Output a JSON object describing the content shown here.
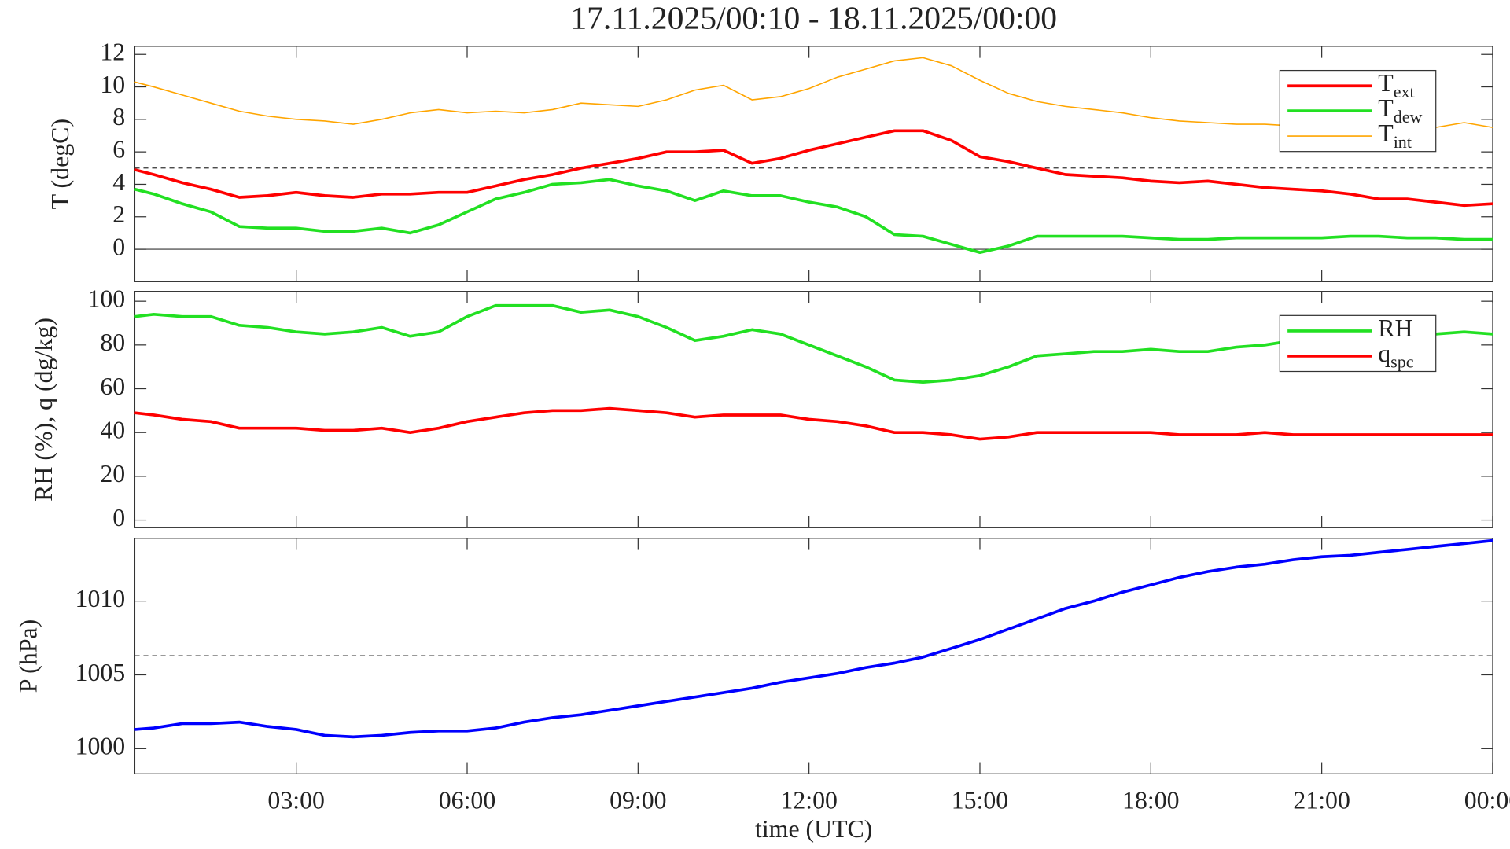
{
  "chart_data": [
    {
      "type": "line",
      "title": "17.11.2025/00:10 - 18.11.2025/00:00",
      "ylabel": "T (degC)",
      "x": [
        0.1667,
        0.5,
        1,
        1.5,
        2,
        2.5,
        3,
        3.5,
        4,
        4.5,
        5,
        5.5,
        6,
        6.5,
        7,
        7.5,
        8,
        8.5,
        9,
        9.5,
        10,
        10.5,
        11,
        11.5,
        12,
        12.5,
        13,
        13.5,
        14,
        14.5,
        15,
        15.5,
        16,
        16.5,
        17,
        17.5,
        18,
        18.5,
        19,
        19.5,
        20,
        20.5,
        21,
        21.5,
        22,
        22.5,
        23,
        23.5,
        24
      ],
      "xlim": [
        0.1667,
        24
      ],
      "ylim": [
        -2,
        12.5
      ],
      "yticks": [
        0,
        2,
        4,
        6,
        8,
        10,
        12
      ],
      "hlines": [
        {
          "value": 5,
          "style": "dashed"
        },
        {
          "value": 0,
          "style": "solid"
        }
      ],
      "legend": "upper right",
      "series": [
        {
          "name": "T",
          "subscript": "ext",
          "color": "#ff0000",
          "values": [
            4.9,
            4.6,
            4.1,
            3.7,
            3.2,
            3.3,
            3.5,
            3.3,
            3.2,
            3.4,
            3.4,
            3.5,
            3.5,
            3.9,
            4.3,
            4.6,
            5.0,
            5.3,
            5.6,
            6.0,
            6.0,
            6.1,
            5.3,
            5.6,
            6.1,
            6.5,
            6.9,
            7.3,
            7.3,
            6.7,
            5.7,
            5.4,
            5.0,
            4.6,
            4.5,
            4.4,
            4.2,
            4.1,
            4.2,
            4.0,
            3.8,
            3.7,
            3.6,
            3.4,
            3.1,
            3.1,
            2.9,
            2.7,
            2.8
          ]
        },
        {
          "name": "T",
          "subscript": "dew",
          "color": "#22e022",
          "values": [
            3.7,
            3.4,
            2.8,
            2.3,
            1.4,
            1.3,
            1.3,
            1.1,
            1.1,
            1.3,
            1.0,
            1.5,
            2.3,
            3.1,
            3.5,
            4.0,
            4.1,
            4.3,
            3.9,
            3.6,
            3.0,
            3.6,
            3.3,
            3.3,
            2.9,
            2.6,
            2.0,
            0.9,
            0.8,
            0.3,
            -0.2,
            0.2,
            0.8,
            0.8,
            0.8,
            0.8,
            0.7,
            0.6,
            0.6,
            0.7,
            0.7,
            0.7,
            0.7,
            0.8,
            0.8,
            0.7,
            0.7,
            0.6,
            0.6
          ]
        },
        {
          "name": "T",
          "subscript": "int",
          "color": "#ffa500",
          "values": [
            10.3,
            10.0,
            9.5,
            9.0,
            8.5,
            8.2,
            8.0,
            7.9,
            7.7,
            8.0,
            8.4,
            8.6,
            8.4,
            8.5,
            8.4,
            8.6,
            9.0,
            8.9,
            8.8,
            9.2,
            9.8,
            10.1,
            9.2,
            9.4,
            9.9,
            10.6,
            11.1,
            11.6,
            11.8,
            11.3,
            10.4,
            9.6,
            9.1,
            8.8,
            8.6,
            8.4,
            8.1,
            7.9,
            7.8,
            7.7,
            7.7,
            7.6,
            7.6,
            7.5,
            7.6,
            7.5,
            7.5,
            7.8,
            7.5
          ]
        }
      ]
    },
    {
      "type": "line",
      "ylabel": "RH (%), q (dg/kg)",
      "x": [
        0.1667,
        0.5,
        1,
        1.5,
        2,
        2.5,
        3,
        3.5,
        4,
        4.5,
        5,
        5.5,
        6,
        6.5,
        7,
        7.5,
        8,
        8.5,
        9,
        9.5,
        10,
        10.5,
        11,
        11.5,
        12,
        12.5,
        13,
        13.5,
        14,
        14.5,
        15,
        15.5,
        16,
        16.5,
        17,
        17.5,
        18,
        18.5,
        19,
        19.5,
        20,
        20.5,
        21,
        21.5,
        22,
        22.5,
        23,
        23.5,
        24
      ],
      "xlim": [
        0.1667,
        24
      ],
      "ylim": [
        -3.5,
        104.5
      ],
      "yticks": [
        0,
        20,
        40,
        60,
        80,
        100
      ],
      "legend": "upper right",
      "series": [
        {
          "name": "RH",
          "color": "#22e022",
          "values": [
            93,
            94,
            93,
            93,
            89,
            88,
            86,
            85,
            86,
            88,
            84,
            86,
            93,
            98,
            98,
            98,
            95,
            96,
            93,
            88,
            82,
            84,
            87,
            85,
            80,
            75,
            70,
            64,
            63,
            64,
            66,
            70,
            75,
            76,
            77,
            77,
            78,
            77,
            77,
            79,
            80,
            82,
            82,
            83,
            84,
            84,
            85,
            86,
            85
          ]
        },
        {
          "name": "q",
          "subscript": "spc",
          "color": "#ff0000",
          "values": [
            49,
            48,
            46,
            45,
            42,
            42,
            42,
            41,
            41,
            42,
            40,
            42,
            45,
            47,
            49,
            50,
            50,
            51,
            50,
            49,
            47,
            48,
            48,
            48,
            46,
            45,
            43,
            40,
            40,
            39,
            37,
            38,
            40,
            40,
            40,
            40,
            40,
            39,
            39,
            39,
            40,
            39,
            39,
            39,
            39,
            39,
            39,
            39,
            39
          ]
        }
      ]
    },
    {
      "type": "line",
      "ylabel": "P (hPa)",
      "xlabel": "time (UTC)",
      "x": [
        0.1667,
        0.5,
        1,
        1.5,
        2,
        2.5,
        3,
        3.5,
        4,
        4.5,
        5,
        5.5,
        6,
        6.5,
        7,
        7.5,
        8,
        8.5,
        9,
        9.5,
        10,
        10.5,
        11,
        11.5,
        12,
        12.5,
        13,
        13.5,
        14,
        14.5,
        15,
        15.5,
        16,
        16.5,
        17,
        17.5,
        18,
        18.5,
        19,
        19.5,
        20,
        20.5,
        21,
        21.5,
        22,
        22.5,
        23,
        23.5,
        24
      ],
      "xlim": [
        0.1667,
        24
      ],
      "xticks": [
        {
          "value": 3,
          "label": "03:00"
        },
        {
          "value": 6,
          "label": "06:00"
        },
        {
          "value": 9,
          "label": "09:00"
        },
        {
          "value": 12,
          "label": "12:00"
        },
        {
          "value": 15,
          "label": "15:00"
        },
        {
          "value": 18,
          "label": "18:00"
        },
        {
          "value": 21,
          "label": "21:00"
        },
        {
          "value": 24,
          "label": "00:00"
        }
      ],
      "ylim": [
        998.3,
        1014.25
      ],
      "yticks": [
        1000,
        1005,
        1010
      ],
      "hlines": [
        {
          "value": 1006.3,
          "style": "dashed"
        }
      ],
      "series": [
        {
          "color": "#0000ff",
          "values": [
            1001.3,
            1001.4,
            1001.7,
            1001.7,
            1001.8,
            1001.5,
            1001.3,
            1000.9,
            1000.8,
            1000.9,
            1001.1,
            1001.2,
            1001.2,
            1001.4,
            1001.8,
            1002.1,
            1002.3,
            1002.6,
            1002.9,
            1003.2,
            1003.5,
            1003.8,
            1004.1,
            1004.5,
            1004.8,
            1005.1,
            1005.5,
            1005.8,
            1006.2,
            1006.8,
            1007.4,
            1008.1,
            1008.8,
            1009.5,
            1010.0,
            1010.6,
            1011.1,
            1011.6,
            1012.0,
            1012.3,
            1012.5,
            1012.8,
            1013.0,
            1013.1,
            1013.3,
            1013.5,
            1013.7,
            1013.9,
            1014.1
          ]
        }
      ]
    }
  ]
}
